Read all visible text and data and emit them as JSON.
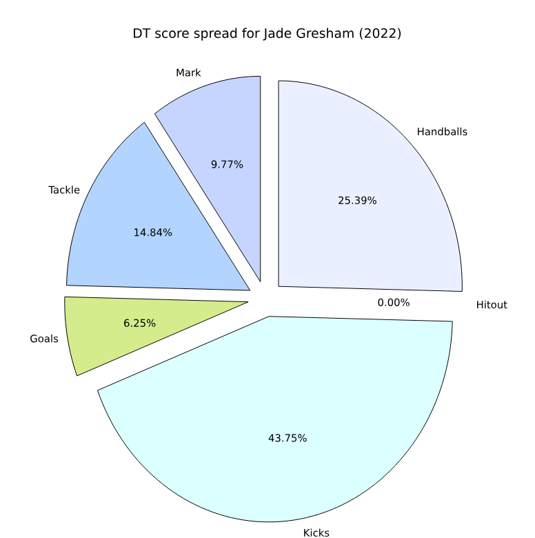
{
  "chart_data": {
    "type": "pie",
    "title": "DT score spread for Jade Gresham (2022)",
    "categories": [
      "Handballs",
      "Hitout",
      "Kicks",
      "Goals",
      "Tackle",
      "Mark"
    ],
    "values": [
      25.39,
      0.0,
      43.75,
      6.25,
      14.84,
      9.77
    ],
    "value_labels": [
      "25.39%",
      "0.00%",
      "43.75%",
      "6.25%",
      "14.84%",
      "9.77%"
    ],
    "colors": [
      "#eaf0ff",
      "#f0f0ff",
      "#dcffff",
      "#d4ec8c",
      "#b3d4ff",
      "#c5d5ff"
    ]
  }
}
